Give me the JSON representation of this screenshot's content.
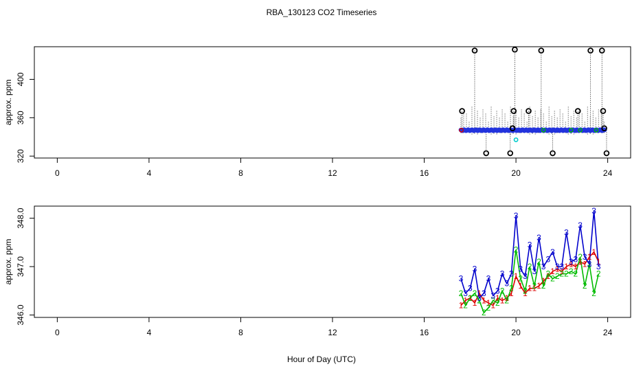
{
  "title": "RBA_130123  CO2 Timeseries",
  "xlabel": "Hour of Day (UTC)",
  "colors": {
    "series1": "#dd0000",
    "series2": "#00bb00",
    "series3": "#0000cc",
    "mixed": "#aa00aa",
    "flask": "#00cccc",
    "outlier": "#000000",
    "blue_points": "#2233dd"
  },
  "chart_data": [
    {
      "type": "scatter",
      "ylabel": "approx. ppm",
      "xlim": [
        -1,
        25
      ],
      "ylim": [
        318,
        434
      ],
      "x_ticks": [
        0,
        4,
        8,
        12,
        16,
        20,
        24
      ],
      "x_tick_labels": [
        "0",
        "4",
        "8",
        "12",
        "16",
        "20",
        "24"
      ],
      "y_ticks": [
        320,
        360,
        400
      ],
      "y_tick_labels": [
        "320",
        "360",
        "400"
      ],
      "baseline": 347,
      "outliers": [
        {
          "x": 17.65,
          "y": 367
        },
        {
          "x": 18.2,
          "y": 430
        },
        {
          "x": 18.7,
          "y": 323
        },
        {
          "x": 19.75,
          "y": 323
        },
        {
          "x": 19.85,
          "y": 349
        },
        {
          "x": 19.9,
          "y": 367
        },
        {
          "x": 19.95,
          "y": 431
        },
        {
          "x": 20.55,
          "y": 367
        },
        {
          "x": 21.1,
          "y": 430
        },
        {
          "x": 21.6,
          "y": 323
        },
        {
          "x": 22.7,
          "y": 367
        },
        {
          "x": 23.25,
          "y": 430
        },
        {
          "x": 23.75,
          "y": 430
        },
        {
          "x": 23.8,
          "y": 367
        },
        {
          "x": 23.85,
          "y": 349
        },
        {
          "x": 23.95,
          "y": 323
        }
      ],
      "flask": [
        {
          "x": 20.0,
          "y": 337
        }
      ],
      "points_x_range": [
        17.6,
        23.9
      ]
    },
    {
      "type": "line",
      "ylabel": "approx. ppm",
      "xlim": [
        -1,
        25
      ],
      "ylim": [
        345.95,
        348.25
      ],
      "x_ticks": [
        0,
        4,
        8,
        12,
        16,
        20,
        24
      ],
      "x_tick_labels": [
        "0",
        "4",
        "8",
        "12",
        "16",
        "20",
        "24"
      ],
      "y_ticks": [
        346.0,
        347.0,
        348.0
      ],
      "y_tick_labels": [
        "346.0",
        "347.0",
        "348.0"
      ],
      "series": [
        {
          "name": "1",
          "marker": "1",
          "points": [
            [
              17.6,
              346.2
            ],
            [
              17.8,
              346.3
            ],
            [
              18.0,
              346.35
            ],
            [
              18.2,
              346.25
            ],
            [
              18.4,
              346.45
            ],
            [
              18.6,
              346.3
            ],
            [
              18.8,
              346.25
            ],
            [
              19.0,
              346.2
            ],
            [
              19.2,
              346.35
            ],
            [
              19.4,
              346.3
            ],
            [
              19.6,
              346.35
            ],
            [
              19.8,
              346.45
            ],
            [
              20.0,
              346.8
            ],
            [
              20.2,
              346.6
            ],
            [
              20.4,
              346.45
            ],
            [
              20.6,
              346.55
            ],
            [
              20.8,
              346.55
            ],
            [
              21.0,
              346.6
            ],
            [
              21.2,
              346.7
            ],
            [
              21.4,
              346.8
            ],
            [
              21.6,
              346.9
            ],
            [
              21.8,
              346.95
            ],
            [
              22.0,
              346.9
            ],
            [
              22.2,
              347.0
            ],
            [
              22.4,
              347.05
            ],
            [
              22.6,
              347.0
            ],
            [
              22.8,
              347.1
            ],
            [
              23.0,
              347.05
            ],
            [
              23.2,
              347.2
            ],
            [
              23.4,
              347.3
            ],
            [
              23.6,
              347.1
            ]
          ]
        },
        {
          "name": "2",
          "marker": "2",
          "points": [
            [
              17.6,
              346.45
            ],
            [
              17.8,
              346.2
            ],
            [
              18.0,
              346.35
            ],
            [
              18.2,
              346.45
            ],
            [
              18.4,
              346.3
            ],
            [
              18.6,
              346.05
            ],
            [
              18.8,
              346.15
            ],
            [
              19.0,
              346.3
            ],
            [
              19.2,
              346.25
            ],
            [
              19.4,
              346.5
            ],
            [
              19.6,
              346.3
            ],
            [
              19.8,
              346.55
            ],
            [
              20.0,
              347.35
            ],
            [
              20.2,
              346.75
            ],
            [
              20.4,
              346.5
            ],
            [
              20.6,
              347.0
            ],
            [
              20.8,
              346.6
            ],
            [
              21.0,
              347.1
            ],
            [
              21.2,
              346.6
            ],
            [
              21.4,
              346.85
            ],
            [
              21.6,
              346.75
            ],
            [
              21.8,
              346.8
            ],
            [
              22.0,
              346.85
            ],
            [
              22.2,
              346.85
            ],
            [
              22.4,
              346.9
            ],
            [
              22.6,
              346.85
            ],
            [
              22.8,
              347.2
            ],
            [
              23.0,
              346.6
            ],
            [
              23.2,
              347.05
            ],
            [
              23.4,
              346.45
            ],
            [
              23.6,
              346.85
            ]
          ]
        },
        {
          "name": "3",
          "marker": "3",
          "points": [
            [
              17.6,
              346.75
            ],
            [
              17.8,
              346.45
            ],
            [
              18.0,
              346.55
            ],
            [
              18.2,
              346.95
            ],
            [
              18.4,
              346.35
            ],
            [
              18.6,
              346.45
            ],
            [
              18.8,
              346.75
            ],
            [
              19.0,
              346.4
            ],
            [
              19.2,
              346.5
            ],
            [
              19.4,
              346.85
            ],
            [
              19.6,
              346.65
            ],
            [
              19.8,
              346.85
            ],
            [
              20.0,
              348.05
            ],
            [
              20.2,
              346.95
            ],
            [
              20.4,
              346.8
            ],
            [
              20.6,
              347.45
            ],
            [
              20.8,
              346.9
            ],
            [
              21.0,
              347.6
            ],
            [
              21.2,
              347.0
            ],
            [
              21.4,
              347.15
            ],
            [
              21.6,
              347.3
            ],
            [
              21.8,
              347.0
            ],
            [
              22.0,
              347.0
            ],
            [
              22.2,
              347.7
            ],
            [
              22.4,
              347.1
            ],
            [
              22.6,
              347.15
            ],
            [
              22.8,
              347.85
            ],
            [
              23.0,
              347.2
            ],
            [
              23.2,
              347.05
            ],
            [
              23.4,
              348.15
            ],
            [
              23.6,
              347.0
            ]
          ]
        }
      ]
    }
  ]
}
